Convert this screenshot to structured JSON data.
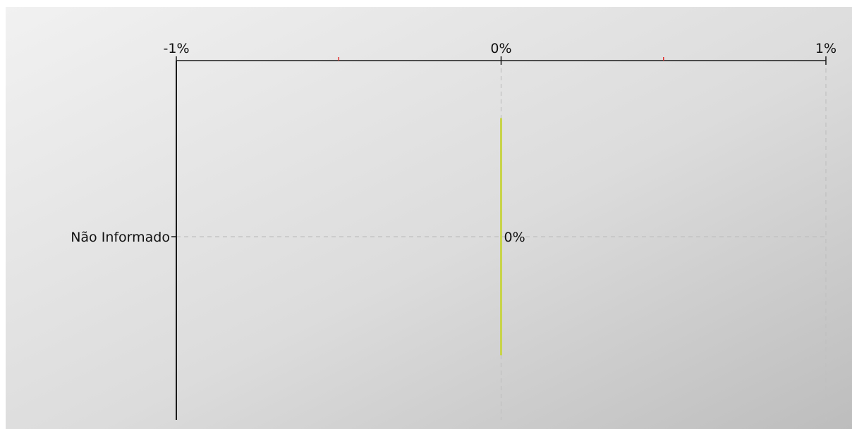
{
  "chart_data": {
    "type": "bar",
    "orientation": "horizontal",
    "categories": [
      "Não Informado"
    ],
    "values": [
      0
    ],
    "data_labels": [
      "0%"
    ],
    "xlim": [
      -1,
      1
    ],
    "x_ticks": [
      -1,
      0,
      1
    ],
    "x_tick_labels": [
      "-1%",
      "0%",
      "1%"
    ],
    "x_minor_ticks": [
      -0.5,
      0.5
    ],
    "x_axis_position": "top",
    "grid": true,
    "legend": "none",
    "colors": {
      "bar": "#c8d44a",
      "axis": "#1a1a1a",
      "grid": "#c0c0c0",
      "minor_tick": "#e03030",
      "text": "#111111"
    }
  }
}
